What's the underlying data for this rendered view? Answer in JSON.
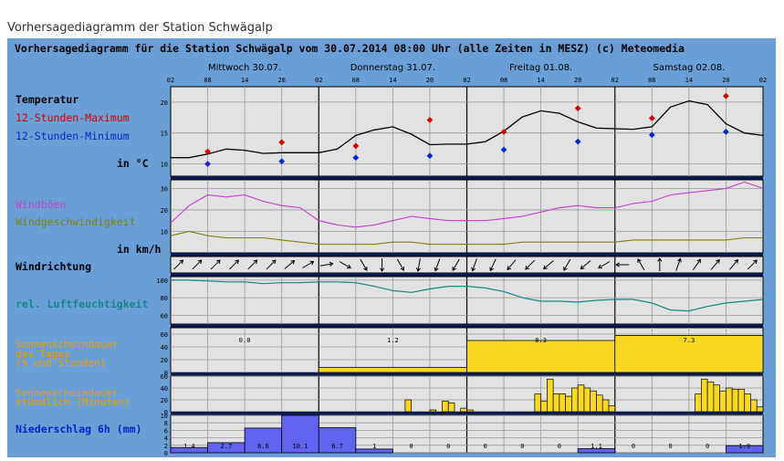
{
  "page_title": "Vorhersagediagramm der Station Schwägalp",
  "chart_data": {
    "type": "line",
    "header": "Vorhersagediagramm für die Station Schwägalp vom 30.07.2014 08:00 Uhr (alle Zeiten in MESZ)   (c) Meteomedia",
    "days": [
      "Mittwoch 30.07.",
      "Donnerstag 31.07.",
      "Freitag 01.08.",
      "Samstag 02.08."
    ],
    "hour_labels": [
      "02",
      "08",
      "14",
      "20"
    ],
    "end_hour_label": "02",
    "colors": {
      "background": "#6a9fd6",
      "panel": "#e2e2e2",
      "max": "#d40000",
      "min": "#0028c8",
      "gust": "#c040c8",
      "wind": "#7e7e10",
      "humidity": "#168686",
      "sun_label": "#f0a000",
      "sun_fill": "#f8d820",
      "precip_fill": "#6262f0"
    },
    "temperature": {
      "labels": [
        "Temperatur",
        "12-Stunden-Maximum",
        "12-Stunden-Minimum",
        "in °C"
      ],
      "yticks": [
        10,
        15,
        20
      ],
      "ylim": [
        8,
        22.5
      ],
      "series_x": [
        0,
        3,
        6,
        9,
        12,
        15,
        18,
        21,
        24,
        27,
        30,
        33,
        36,
        39,
        42,
        45,
        48,
        51,
        54,
        57,
        60,
        63,
        66,
        69,
        72,
        75,
        78,
        81,
        84,
        87,
        90,
        93,
        96
      ],
      "series": [
        11.0,
        11.0,
        11.6,
        12.4,
        12.2,
        11.7,
        11.8,
        11.8,
        11.8,
        12.4,
        14.6,
        15.5,
        16.0,
        14.8,
        13.1,
        13.2,
        13.2,
        13.6,
        15.3,
        17.6,
        18.6,
        18.2,
        16.8,
        15.8,
        15.7,
        15.6,
        16.0,
        19.2,
        20.2,
        19.6,
        16.5,
        15.0,
        14.6
      ],
      "max": [
        {
          "x": 6,
          "v": 12.0
        },
        {
          "x": 18,
          "v": 13.5
        },
        {
          "x": 30,
          "v": 12.9
        },
        {
          "x": 42,
          "v": 17.1
        },
        {
          "x": 54,
          "v": 15.2
        },
        {
          "x": 66,
          "v": 19.0
        },
        {
          "x": 78,
          "v": 17.4
        },
        {
          "x": 90,
          "v": 21.0
        }
      ],
      "min": [
        {
          "x": 6,
          "v": 10.0
        },
        {
          "x": 18,
          "v": 10.4
        },
        {
          "x": 30,
          "v": 11.0
        },
        {
          "x": 42,
          "v": 11.3
        },
        {
          "x": 54,
          "v": 12.3
        },
        {
          "x": 66,
          "v": 13.6
        },
        {
          "x": 78,
          "v": 14.7
        },
        {
          "x": 90,
          "v": 15.2
        }
      ]
    },
    "wind": {
      "labels": [
        "Windböen",
        "Windgeschwindigkeit",
        "in km/h"
      ],
      "yticks": [
        10,
        20,
        30
      ],
      "ylim": [
        0,
        34
      ],
      "series_x": [
        0,
        3,
        6,
        9,
        12,
        15,
        18,
        21,
        24,
        27,
        30,
        33,
        36,
        39,
        42,
        45,
        48,
        51,
        54,
        57,
        60,
        63,
        66,
        69,
        72,
        75,
        78,
        81,
        84,
        87,
        90,
        93,
        96
      ],
      "gusts": [
        14,
        22,
        27,
        26,
        27,
        24,
        22,
        21,
        15,
        13,
        12,
        13,
        15,
        17,
        16,
        15,
        15,
        15,
        16,
        17,
        19,
        21,
        22,
        21,
        21,
        23,
        24,
        27,
        28,
        29,
        30,
        33,
        30
      ],
      "speed": [
        8,
        10,
        8,
        7,
        7,
        7,
        6,
        5,
        4,
        4,
        4,
        4,
        5,
        5,
        4,
        4,
        4,
        4,
        4,
        5,
        5,
        5,
        5,
        5,
        5,
        6,
        6,
        6,
        6,
        6,
        6,
        7,
        7
      ]
    },
    "wind_direction": {
      "label": "Windrichtung",
      "x": [
        0,
        3,
        6,
        9,
        12,
        15,
        18,
        21,
        24,
        27,
        30,
        33,
        36,
        39,
        42,
        45,
        48,
        51,
        54,
        57,
        60,
        63,
        66,
        69,
        72,
        75,
        78,
        81,
        84,
        87,
        90,
        93,
        96
      ],
      "toward_deg": [
        45,
        45,
        45,
        45,
        45,
        45,
        50,
        60,
        80,
        120,
        150,
        180,
        150,
        190,
        200,
        210,
        200,
        205,
        220,
        225,
        230,
        210,
        230,
        240,
        270,
        330,
        0,
        20,
        35,
        40,
        40,
        45,
        45
      ]
    },
    "humidity": {
      "label": "rel. Luftfeuchtigkeit",
      "yticks": [
        60,
        80,
        100
      ],
      "ylim": [
        50,
        104
      ],
      "series_x": [
        0,
        3,
        6,
        9,
        12,
        15,
        18,
        21,
        24,
        27,
        30,
        33,
        36,
        39,
        42,
        45,
        48,
        51,
        54,
        57,
        60,
        63,
        66,
        69,
        72,
        75,
        78,
        81,
        84,
        87,
        90,
        93,
        96
      ],
      "series": [
        100,
        100,
        99,
        98,
        98,
        96,
        97,
        97,
        98,
        98,
        97,
        93,
        88,
        86,
        90,
        93,
        93,
        91,
        87,
        80,
        76,
        76,
        75,
        77,
        78,
        78,
        74,
        66,
        65,
        70,
        74,
        76,
        78
      ]
    },
    "sunshine_daily": {
      "labels": [
        "Sonnenscheindauer",
        "des Tages",
        "(% und Stunden)"
      ],
      "yticks": [
        0,
        20,
        40,
        60
      ],
      "ylim": [
        0,
        70
      ],
      "percent": [
        0,
        8,
        50,
        58
      ],
      "hours": [
        "0.0",
        "1.2",
        "8.3",
        "7.3"
      ]
    },
    "sunshine_hourly": {
      "labels": [
        "Sonnenscheindauer",
        "stündlich (Minuten)"
      ],
      "yticks": [
        0,
        20,
        40,
        60
      ],
      "ylim": [
        0,
        60
      ],
      "bars": [
        {
          "h": 38,
          "v": 20
        },
        {
          "h": 42,
          "v": 3
        },
        {
          "h": 44,
          "v": 18
        },
        {
          "h": 45,
          "v": 15
        },
        {
          "h": 47,
          "v": 6
        },
        {
          "h": 48,
          "v": 3
        },
        {
          "h": 59,
          "v": 30
        },
        {
          "h": 60,
          "v": 18
        },
        {
          "h": 61,
          "v": 55
        },
        {
          "h": 62,
          "v": 30
        },
        {
          "h": 63,
          "v": 30
        },
        {
          "h": 64,
          "v": 26
        },
        {
          "h": 65,
          "v": 40
        },
        {
          "h": 66,
          "v": 45
        },
        {
          "h": 67,
          "v": 40
        },
        {
          "h": 68,
          "v": 35
        },
        {
          "h": 69,
          "v": 28
        },
        {
          "h": 70,
          "v": 20
        },
        {
          "h": 71,
          "v": 10
        },
        {
          "h": 85,
          "v": 30
        },
        {
          "h": 86,
          "v": 55
        },
        {
          "h": 87,
          "v": 50
        },
        {
          "h": 88,
          "v": 45
        },
        {
          "h": 89,
          "v": 35
        },
        {
          "h": 90,
          "v": 40
        },
        {
          "h": 91,
          "v": 38
        },
        {
          "h": 92,
          "v": 38
        },
        {
          "h": 93,
          "v": 30
        },
        {
          "h": 94,
          "v": 20
        },
        {
          "h": 95,
          "v": 8
        }
      ]
    },
    "precipitation": {
      "label": "Niederschlag 6h (mm)",
      "yticks": [
        0,
        2,
        4,
        6,
        8,
        10
      ],
      "ylim": [
        0,
        10
      ],
      "values": [
        1.4,
        2.7,
        6.6,
        10.1,
        6.7,
        1,
        0,
        0,
        0,
        0,
        0,
        1.1,
        0,
        0,
        0,
        1.9
      ],
      "value_labels": [
        "1.4",
        "2.7",
        "6.6",
        "10.1",
        "6.7",
        "1",
        "0",
        "0",
        "0",
        "0",
        "0",
        "1.1",
        "0",
        "0",
        "0",
        "1.9"
      ]
    }
  }
}
